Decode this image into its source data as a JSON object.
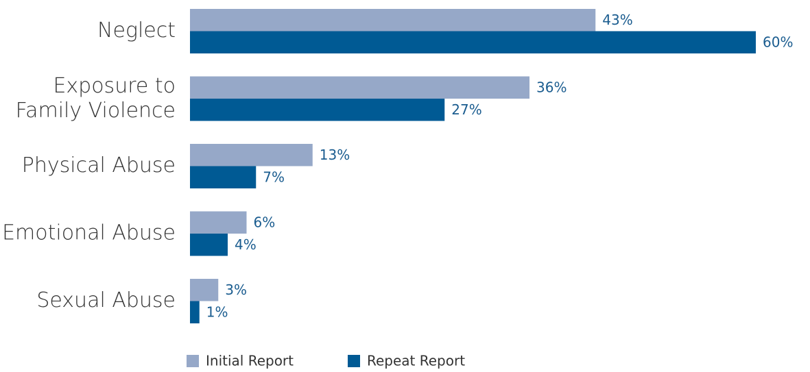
{
  "chart_data": {
    "type": "bar",
    "orientation": "horizontal",
    "categories": [
      "Neglect",
      "Exposure to\nFamily Violence",
      "Physical Abuse",
      "Emotional Abuse",
      "Sexual Abuse"
    ],
    "series": [
      {
        "name": "Initial Report",
        "color": "#96a8c8",
        "values": [
          43,
          36,
          13,
          6,
          3
        ],
        "value_labels": [
          "43%",
          "36%",
          "13%",
          "6%",
          "3%"
        ]
      },
      {
        "name": "Repeat Report",
        "color": "#005a94",
        "values": [
          60,
          27,
          7,
          4,
          1
        ],
        "value_labels": [
          "60%",
          "27%",
          "7%",
          "4%",
          "1%"
        ]
      }
    ],
    "legend": "bottom"
  }
}
